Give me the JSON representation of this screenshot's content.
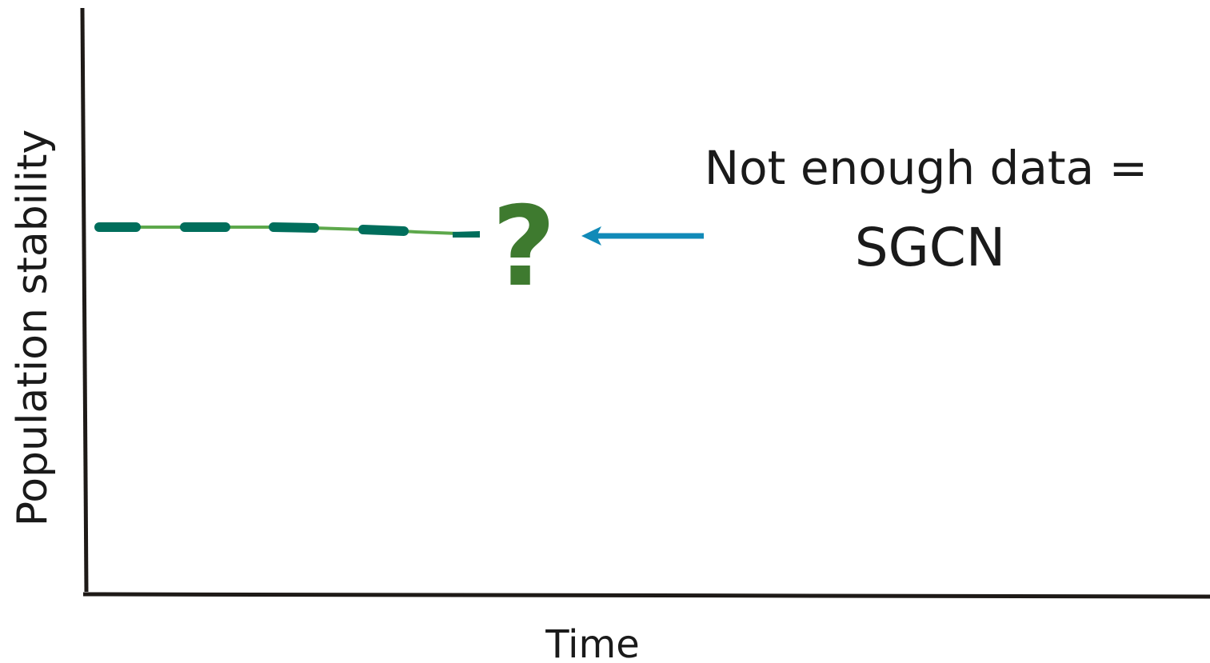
{
  "axes": {
    "y_label": "Population stability",
    "x_label": "Time"
  },
  "annotation": {
    "question_mark": "?",
    "line1": "Not enough data =",
    "line2": "SGCN"
  },
  "trend": {
    "description_level": "flat, slightly declining",
    "solid_color": "#5da84b",
    "dash_color": "#006e5c"
  },
  "colors": {
    "axis": "#1e1a17",
    "arrow": "#118ab8",
    "question_mark": "#3e7a2f",
    "text": "#1a1a1a"
  },
  "icons": {
    "pointer": "left-arrow-icon"
  }
}
